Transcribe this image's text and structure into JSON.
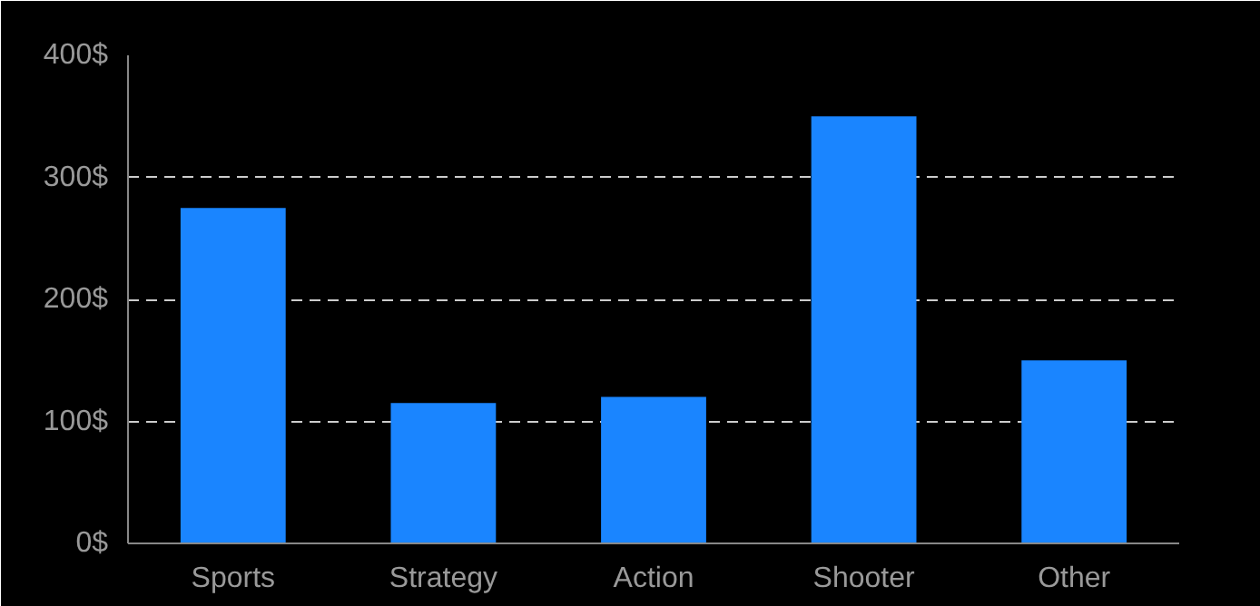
{
  "chart_data": {
    "type": "bar",
    "categories": [
      "Sports",
      "Strategy",
      "Action",
      "Shooter",
      "Other"
    ],
    "values": [
      275,
      115,
      120,
      350,
      150
    ],
    "color": "#1a85ff",
    "ylim": [
      0,
      400
    ],
    "yticks": [
      {
        "value": 0,
        "label": "0$"
      },
      {
        "value": 100,
        "label": "100$"
      },
      {
        "value": 200,
        "label": "200$"
      },
      {
        "value": 300,
        "label": "300$"
      },
      {
        "value": 400,
        "label": "400$"
      }
    ],
    "grid": "y"
  }
}
